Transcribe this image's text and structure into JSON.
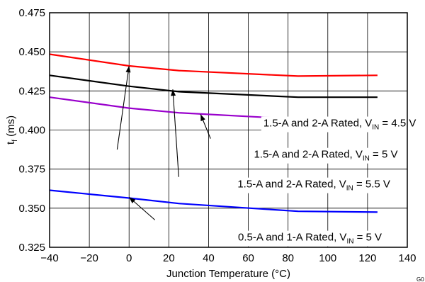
{
  "chart_data": {
    "type": "line",
    "title": "",
    "xlabel": "Junction Temperature (°C)",
    "ylabel": {
      "main": "t",
      "sub": "f",
      "unit": " (ms)"
    },
    "xlim": [
      -40,
      140
    ],
    "ylim": [
      0.325,
      0.475
    ],
    "x_ticks": [
      {
        "value": -40,
        "label": "−40"
      },
      {
        "value": -20,
        "label": "−20"
      },
      {
        "value": 0,
        "label": "0"
      },
      {
        "value": 20,
        "label": "20"
      },
      {
        "value": 40,
        "label": "40"
      },
      {
        "value": 60,
        "label": "60"
      },
      {
        "value": 80,
        "label": "80"
      },
      {
        "value": 100,
        "label": "100"
      },
      {
        "value": 120,
        "label": "120"
      },
      {
        "value": 140,
        "label": "140"
      }
    ],
    "y_ticks": [
      {
        "value": 0.325,
        "label": "0.325"
      },
      {
        "value": 0.35,
        "label": "0.350"
      },
      {
        "value": 0.375,
        "label": "0.375"
      },
      {
        "value": 0.4,
        "label": "0.400"
      },
      {
        "value": 0.425,
        "label": "0.425"
      },
      {
        "value": 0.45,
        "label": "0.450"
      },
      {
        "value": 0.475,
        "label": "0.475"
      }
    ],
    "grid": true,
    "corner_label": "G0",
    "series": [
      {
        "name": "1.5-A and 2-A Rated, VIN = 4.5 V",
        "color": "#ff0000",
        "points": [
          [
            -40,
            0.4485
          ],
          [
            0,
            0.441
          ],
          [
            25,
            0.438
          ],
          [
            85,
            0.4345
          ],
          [
            125,
            0.435
          ]
        ]
      },
      {
        "name": "1.5-A and 2-A Rated, VIN = 5 V",
        "color": "#000000",
        "points": [
          [
            -40,
            0.435
          ],
          [
            0,
            0.428
          ],
          [
            25,
            0.4245
          ],
          [
            85,
            0.421
          ],
          [
            125,
            0.421
          ]
        ]
      },
      {
        "name": "1.5-A and 2-A Rated, VIN = 5.5 V",
        "color": "#9900cc",
        "points": [
          [
            -40,
            0.421
          ],
          [
            0,
            0.414
          ],
          [
            25,
            0.411
          ],
          [
            85,
            0.407
          ],
          [
            125,
            0.4065
          ]
        ]
      },
      {
        "name": "0.5-A and 1-A Rated, VIN = 5 V",
        "color": "#0000ff",
        "points": [
          [
            -40,
            0.3615
          ],
          [
            0,
            0.3565
          ],
          [
            25,
            0.353
          ],
          [
            85,
            0.348
          ],
          [
            125,
            0.3475
          ]
        ]
      }
    ],
    "annotations": [
      {
        "parts": [
          {
            "t": "1.5-A and 2-A Rated, V"
          },
          {
            "t": "IN",
            "sub": true
          },
          {
            "t": " = 4.5 V"
          }
        ],
        "anchor": [
          106,
          0.4045
        ],
        "arrow_from": [
          -6,
          0.3875
        ],
        "arrow_to": [
          0,
          0.441
        ]
      },
      {
        "parts": [
          {
            "t": "1.5-A and 2-A Rated, V"
          },
          {
            "t": "IN",
            "sub": true
          },
          {
            "t": " = 5 V"
          }
        ],
        "anchor": [
          99,
          0.3845
        ],
        "arrow_from": [
          25,
          0.37
        ],
        "arrow_to": [
          22,
          0.426
        ]
      },
      {
        "parts": [
          {
            "t": "1.5-A and 2-A Rated, V"
          },
          {
            "t": "IN",
            "sub": true
          },
          {
            "t": " = 5.5 V"
          }
        ],
        "anchor": [
          93,
          0.3655
        ],
        "arrow_from": [
          41,
          0.3945
        ],
        "arrow_to": [
          36,
          0.41
        ]
      },
      {
        "parts": [
          {
            "t": "0.5-A and 1-A Rated, V"
          },
          {
            "t": "IN",
            "sub": true
          },
          {
            "t": " = 5 V"
          }
        ],
        "anchor": [
          91,
          0.3315
        ],
        "arrow_from": [
          13,
          0.3425
        ],
        "arrow_to": [
          0,
          0.357
        ]
      }
    ]
  }
}
